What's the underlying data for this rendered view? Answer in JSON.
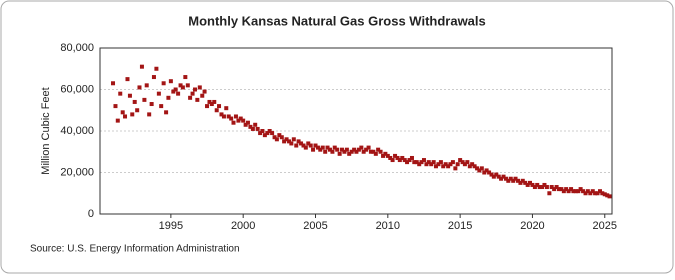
{
  "chart_data": {
    "type": "scatter",
    "title": "Monthly Kansas Natural Gas Gross Withdrawals",
    "y_label": "Million Cubic Feet",
    "source": "Source: U.S. Energy Information Administration",
    "color": "#a31515",
    "grid": true,
    "xlim": [
      1990.1,
      2025.5
    ],
    "ylim": [
      0,
      80000
    ],
    "xticks": [
      1995,
      2000,
      2005,
      2010,
      2015,
      2020,
      2025
    ],
    "yticks": [
      0,
      {
        "value": 20000,
        "label": "20,000"
      },
      {
        "value": 40000,
        "label": "40,000"
      },
      {
        "value": 60000,
        "label": "60,000"
      },
      {
        "value": 80000,
        "label": "80,000"
      }
    ],
    "x": [
      1991,
      1991.17,
      1991.33,
      1991.5,
      1991.67,
      1991.83,
      1992,
      1992.17,
      1992.33,
      1992.5,
      1992.67,
      1992.83,
      1993,
      1993.17,
      1993.33,
      1993.5,
      1993.67,
      1993.83,
      1994,
      1994.17,
      1994.33,
      1994.5,
      1994.67,
      1994.83,
      1995,
      1995.17,
      1995.33,
      1995.5,
      1995.67,
      1995.83,
      1996,
      1996.17,
      1996.33,
      1996.5,
      1996.67,
      1996.83,
      1997,
      1997.17,
      1997.33,
      1997.5,
      1997.67,
      1997.83,
      1998,
      1998.17,
      1998.33,
      1998.5,
      1998.67,
      1998.83,
      1999,
      1999.17,
      1999.33,
      1999.5,
      1999.67,
      1999.83,
      2000,
      2000.17,
      2000.33,
      2000.5,
      2000.67,
      2000.83,
      2001,
      2001.17,
      2001.33,
      2001.5,
      2001.67,
      2001.83,
      2002,
      2002.17,
      2002.33,
      2002.5,
      2002.67,
      2002.83,
      2003,
      2003.17,
      2003.33,
      2003.5,
      2003.67,
      2003.83,
      2004,
      2004.17,
      2004.33,
      2004.5,
      2004.67,
      2004.83,
      2005,
      2005.17,
      2005.33,
      2005.5,
      2005.67,
      2005.83,
      2006,
      2006.17,
      2006.33,
      2006.5,
      2006.67,
      2006.83,
      2007,
      2007.17,
      2007.33,
      2007.5,
      2007.67,
      2007.83,
      2008,
      2008.17,
      2008.33,
      2008.5,
      2008.67,
      2008.83,
      2009,
      2009.17,
      2009.33,
      2009.5,
      2009.67,
      2009.83,
      2010,
      2010.17,
      2010.33,
      2010.5,
      2010.67,
      2010.83,
      2011,
      2011.17,
      2011.33,
      2011.5,
      2011.67,
      2011.83,
      2012,
      2012.17,
      2012.33,
      2012.5,
      2012.67,
      2012.83,
      2013,
      2013.17,
      2013.33,
      2013.5,
      2013.67,
      2013.83,
      2014,
      2014.17,
      2014.33,
      2014.5,
      2014.67,
      2014.83,
      2015,
      2015.17,
      2015.33,
      2015.5,
      2015.67,
      2015.83,
      2016,
      2016.17,
      2016.33,
      2016.5,
      2016.67,
      2016.83,
      2017,
      2017.17,
      2017.33,
      2017.5,
      2017.67,
      2017.83,
      2018,
      2018.17,
      2018.33,
      2018.5,
      2018.67,
      2018.83,
      2019,
      2019.17,
      2019.33,
      2019.5,
      2019.67,
      2019.83,
      2020,
      2020.17,
      2020.33,
      2020.5,
      2020.67,
      2020.83,
      2021,
      2021.17,
      2021.33,
      2021.5,
      2021.67,
      2021.83,
      2022,
      2022.17,
      2022.33,
      2022.5,
      2022.67,
      2022.83,
      2023,
      2023.17,
      2023.33,
      2023.5,
      2023.67,
      2023.83,
      2024,
      2024.17,
      2024.33,
      2024.5,
      2024.67,
      2024.83,
      2025,
      2025.17,
      2025.33
    ],
    "values": [
      63000,
      52000,
      45000,
      58000,
      49000,
      47000,
      65000,
      57000,
      48000,
      54000,
      50000,
      61000,
      71000,
      55000,
      62000,
      48000,
      53000,
      66000,
      70000,
      58000,
      52000,
      63000,
      49000,
      56000,
      64000,
      59000,
      60000,
      58000,
      62000,
      61000,
      66000,
      62000,
      56000,
      58000,
      60000,
      55000,
      61000,
      57000,
      59000,
      52000,
      54000,
      53000,
      54000,
      50000,
      52000,
      48000,
      47000,
      51000,
      47000,
      46000,
      44000,
      47000,
      45000,
      46000,
      45000,
      43000,
      44000,
      42000,
      41000,
      43000,
      41000,
      39000,
      40000,
      38000,
      39000,
      40000,
      39000,
      37000,
      36000,
      38000,
      37000,
      35000,
      36000,
      35000,
      34000,
      36000,
      33000,
      35000,
      34000,
      33000,
      32000,
      34000,
      33000,
      31000,
      33000,
      32000,
      31000,
      32000,
      30000,
      32000,
      31000,
      30000,
      32000,
      31000,
      29000,
      31000,
      30000,
      31000,
      29000,
      30000,
      31000,
      30000,
      31000,
      32000,
      30000,
      31000,
      32000,
      30000,
      30000,
      29000,
      31000,
      30000,
      28000,
      29000,
      28000,
      27000,
      26000,
      28000,
      27000,
      26000,
      27000,
      26000,
      25000,
      26000,
      27000,
      25000,
      25000,
      24000,
      25000,
      26000,
      24000,
      25000,
      24000,
      25000,
      23000,
      24000,
      25000,
      23000,
      24000,
      23000,
      24000,
      25000,
      22000,
      24000,
      26000,
      25000,
      24000,
      25000,
      23000,
      24000,
      23000,
      22000,
      21000,
      22000,
      20000,
      21000,
      20000,
      19000,
      18000,
      19000,
      18000,
      17000,
      18000,
      17000,
      16000,
      17000,
      16000,
      17000,
      16000,
      15000,
      16000,
      15000,
      14000,
      15000,
      14000,
      13000,
      14000,
      13000,
      13000,
      14000,
      13000,
      10000,
      13000,
      12000,
      13000,
      12000,
      12000,
      11000,
      12000,
      11000,
      12000,
      11000,
      11000,
      11000,
      12000,
      11000,
      10000,
      11000,
      10000,
      11000,
      10000,
      10000,
      11000,
      10000,
      9500,
      9000,
      8500
    ]
  }
}
